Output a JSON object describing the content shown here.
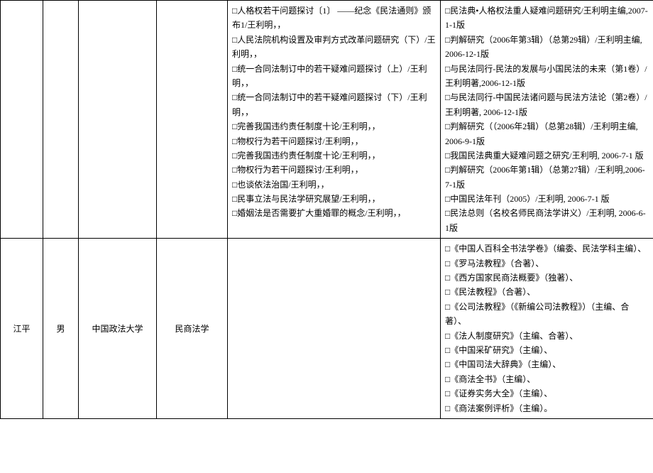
{
  "row1": {
    "col5": [
      "□人格权若干问题探讨〔1〕 ——纪念《民法通则》颁布1/王利明，，",
      "□人民法院机构设置及审判方式改革问题研究（下）/王利明，，",
      "□统一合同法制订中的若干疑难问题探讨（上）/王利明，，",
      "□统一合同法制订中的若干疑难问题探讨（下）/王利明，，",
      "□完善我国违约责任制度十论/王利明，，",
      "□物权行为若干问题探讨/王利明，，",
      "□完善我国违约责任制度十论/王利明，，",
      "□物权行为若干问题探讨/王利明，，",
      "□也谈依法治国/王利明，，",
      "□民事立法与民法学研究展望/王利明，，",
      "□婚姻法是否需要扩大重婚罪的概念/王利明，，"
    ],
    "col6": [
      "□民法典•人格权法重人疑难问题研究/王利明主编,2007-1-1版",
      "□判解研究（2006年第3辑）（总第29辑）/王利明主编, 2006-12-1版",
      "□与民法同行-民法的发展与小国民法的未来（第1卷）/王利明著,2006-12-1版",
      "□与民法同行-中国民法诸问题与民法方法论（第2卷）/王利明著, 2006-12-1版",
      "□判解研究（（2006年2辑）（总第28辑）/王利明主编, 2006-9-1版",
      "□我国民法典重大疑难问题之研究/王利明, 2006-7-1 版",
      "□判解研究（2006年第1辑）（总第27辑）/王利明,2006-7-1版",
      "□中国民法年刊（2005）/王利明, 2006-7-1 版",
      "□民法总则（名校名师民商法学讲义）/王利明, 2006-6-1版"
    ]
  },
  "row2": {
    "col1": "江平",
    "col2": "男",
    "col3": "中国政法大学",
    "col4": "民商法学",
    "col5": [],
    "col6": [
      "□《中国人百科全书法学卷》（编委、民法学科主编）、",
      "□《罗马法教程》（合著）、",
      "□《西方国家民商法概要》（独著）、",
      "□《民法教程》（合著）、",
      "□《公司法教程》（《新编公司法教程》）（主编、合著）、",
      "□《法人制度研究》（主编、合著）、",
      "□《中国采矿研究》（主编）、",
      "□《中国司法大辞典》（主编）、",
      "□《商法全书》（主编）、",
      "□《证券实务大全》（主编）、",
      "□《商法案例评析》（主编）。"
    ]
  }
}
